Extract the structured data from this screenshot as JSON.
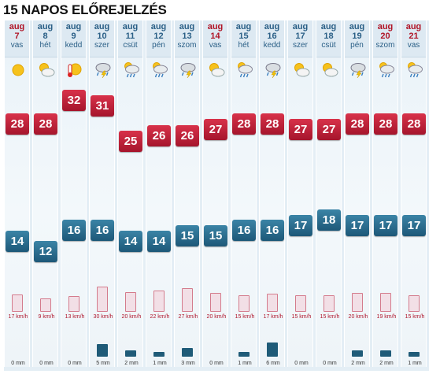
{
  "title": "15 NAPOS ELŐREJELZÉS",
  "colors": {
    "max": "#c0203a",
    "min": "#26678a",
    "wind": "#b0172d",
    "rain": "#1f5b78"
  },
  "days": [
    {
      "mon": "aug",
      "day": "7",
      "wd": "vas",
      "weekend": true,
      "icon": "sun-icon",
      "max": "28",
      "min": "14",
      "wind": "17 km/h",
      "windLevel": 0.55,
      "rain": "0 mm",
      "rainLevel": 0
    },
    {
      "mon": "aug",
      "day": "8",
      "wd": "hét",
      "weekend": false,
      "icon": "partly-cloudy-icon",
      "max": "28",
      "min": "12",
      "wind": "9 km/h",
      "windLevel": 0.3,
      "rain": "0 mm",
      "rainLevel": 0
    },
    {
      "mon": "aug",
      "day": "9",
      "wd": "kedd",
      "weekend": false,
      "icon": "hot-sun-icon",
      "max": "32",
      "min": "16",
      "wind": "13 km/h",
      "windLevel": 0.45,
      "rain": "0 mm",
      "rainLevel": 0
    },
    {
      "mon": "aug",
      "day": "10",
      "wd": "szer",
      "weekend": false,
      "icon": "thunderstorm-icon",
      "max": "31",
      "min": "16",
      "wind": "30 km/h",
      "windLevel": 1.0,
      "rain": "5 mm",
      "rainLevel": 0.85
    },
    {
      "mon": "aug",
      "day": "11",
      "wd": "csüt",
      "weekend": false,
      "icon": "cloud-rain-icon",
      "max": "25",
      "min": "14",
      "wind": "20 km/h",
      "windLevel": 0.7,
      "rain": "2 mm",
      "rainLevel": 0.35
    },
    {
      "mon": "aug",
      "day": "12",
      "wd": "pén",
      "weekend": false,
      "icon": "cloud-rain-icon",
      "max": "26",
      "min": "14",
      "wind": "22 km/h",
      "windLevel": 0.75,
      "rain": "1 mm",
      "rainLevel": 0.2
    },
    {
      "mon": "aug",
      "day": "13",
      "wd": "szom",
      "weekend": false,
      "icon": "thunderstorm-icon",
      "max": "26",
      "min": "15",
      "wind": "27 km/h",
      "windLevel": 0.9,
      "rain": "3 mm",
      "rainLevel": 0.55
    },
    {
      "mon": "aug",
      "day": "14",
      "wd": "vas",
      "weekend": true,
      "icon": "partly-cloudy-icon",
      "max": "27",
      "min": "15",
      "wind": "20 km/h",
      "windLevel": 0.65,
      "rain": "0 mm",
      "rainLevel": 0
    },
    {
      "mon": "aug",
      "day": "15",
      "wd": "hét",
      "weekend": false,
      "icon": "cloud-rain-icon",
      "max": "28",
      "min": "16",
      "wind": "15 km/h",
      "windLevel": 0.5,
      "rain": "1 mm",
      "rainLevel": 0.2
    },
    {
      "mon": "aug",
      "day": "16",
      "wd": "kedd",
      "weekend": false,
      "icon": "thunderstorm-icon",
      "max": "28",
      "min": "16",
      "wind": "17 km/h",
      "windLevel": 0.6,
      "rain": "6 mm",
      "rainLevel": 1.0
    },
    {
      "mon": "aug",
      "day": "17",
      "wd": "szer",
      "weekend": false,
      "icon": "partly-cloudy-icon",
      "max": "27",
      "min": "17",
      "wind": "15 km/h",
      "windLevel": 0.5,
      "rain": "0 mm",
      "rainLevel": 0
    },
    {
      "mon": "aug",
      "day": "18",
      "wd": "csüt",
      "weekend": false,
      "icon": "partly-cloudy-icon",
      "max": "27",
      "min": "18",
      "wind": "15 km/h",
      "windLevel": 0.5,
      "rain": "0 mm",
      "rainLevel": 0
    },
    {
      "mon": "aug",
      "day": "19",
      "wd": "pén",
      "weekend": false,
      "icon": "thunderstorm-icon",
      "max": "28",
      "min": "17",
      "wind": "20 km/h",
      "windLevel": 0.65,
      "rain": "2 mm",
      "rainLevel": 0.35
    },
    {
      "mon": "aug",
      "day": "20",
      "wd": "szom",
      "weekend": true,
      "icon": "cloud-rain-icon",
      "max": "28",
      "min": "17",
      "wind": "19 km/h",
      "windLevel": 0.65,
      "rain": "2 mm",
      "rainLevel": 0.35
    },
    {
      "mon": "aug",
      "day": "21",
      "wd": "vas",
      "weekend": true,
      "icon": "cloud-rain-icon",
      "max": "28",
      "min": "17",
      "wind": "15 km/h",
      "windLevel": 0.5,
      "rain": "1 mm",
      "rainLevel": 0.2
    }
  ],
  "chart_data": {
    "type": "table",
    "title": "15 NAPOS ELŐREJELZÉS",
    "categories": [
      "aug 7",
      "aug 8",
      "aug 9",
      "aug 10",
      "aug 11",
      "aug 12",
      "aug 13",
      "aug 14",
      "aug 15",
      "aug 16",
      "aug 17",
      "aug 18",
      "aug 19",
      "aug 20",
      "aug 21"
    ],
    "series": [
      {
        "name": "max",
        "values": [
          28,
          28,
          32,
          31,
          25,
          26,
          26,
          27,
          28,
          28,
          27,
          27,
          28,
          28,
          28
        ]
      },
      {
        "name": "min",
        "values": [
          14,
          12,
          16,
          16,
          14,
          14,
          15,
          15,
          16,
          16,
          17,
          18,
          17,
          17,
          17
        ]
      },
      {
        "name": "km/h",
        "values": [
          17,
          9,
          13,
          30,
          20,
          22,
          27,
          20,
          15,
          17,
          15,
          15,
          20,
          19,
          15
        ]
      },
      {
        "name": "mm",
        "values": [
          0,
          0,
          0,
          5,
          2,
          1,
          3,
          0,
          1,
          6,
          0,
          0,
          2,
          2,
          1
        ]
      }
    ]
  }
}
